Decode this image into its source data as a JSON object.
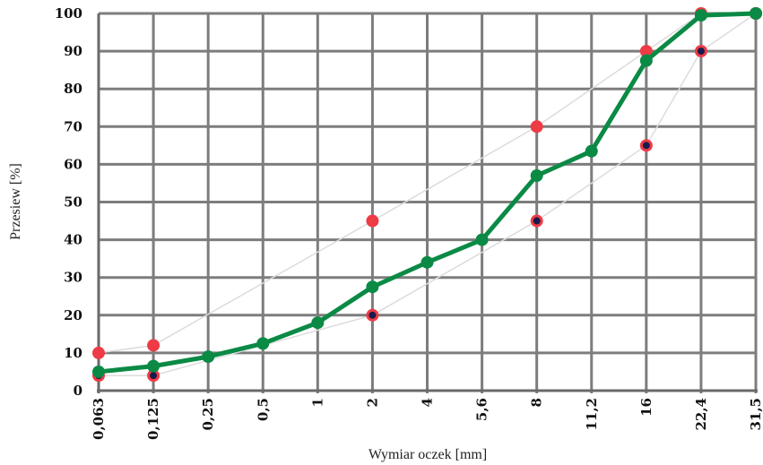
{
  "chart_data": {
    "type": "line",
    "xlabel": "Wymiar oczek [mm]",
    "ylabel": "Przesiew [%]",
    "categories": [
      "0,063",
      "0,125",
      "0,25",
      "0,5",
      "1",
      "2",
      "4",
      "5,6",
      "8",
      "11,2",
      "16",
      "22,4",
      "31,5"
    ],
    "yticks": [
      "0",
      "10",
      "20",
      "30",
      "40",
      "50",
      "60",
      "70",
      "80",
      "90",
      "100"
    ],
    "ylim": [
      0,
      100
    ],
    "grid": true,
    "legend": "none",
    "series": [
      {
        "role": "grading-curve",
        "color": "#0a8a45",
        "points": [
          {
            "x": "0,063",
            "y": 5
          },
          {
            "x": "0,125",
            "y": 6.5
          },
          {
            "x": "0,25",
            "y": 9
          },
          {
            "x": "0,5",
            "y": 12.5
          },
          {
            "x": "1",
            "y": 18
          },
          {
            "x": "2",
            "y": 27.5
          },
          {
            "x": "4",
            "y": 34
          },
          {
            "x": "5,6",
            "y": 40
          },
          {
            "x": "8",
            "y": 57
          },
          {
            "x": "11,2",
            "y": 63.5
          },
          {
            "x": "16",
            "y": 87.5
          },
          {
            "x": "22,4",
            "y": 99.5
          },
          {
            "x": "31,5",
            "y": 100
          }
        ]
      },
      {
        "role": "upper-limit",
        "color": "#ee3b46",
        "points": [
          {
            "x": "0,063",
            "y": 10
          },
          {
            "x": "0,125",
            "y": 12
          },
          {
            "x": "2",
            "y": 45
          },
          {
            "x": "8",
            "y": 70
          },
          {
            "x": "16",
            "y": 90
          },
          {
            "x": "22,4",
            "y": 100
          },
          {
            "x": "31,5",
            "y": 100
          }
        ]
      },
      {
        "role": "lower-limit",
        "color": "#ee3b46",
        "inner_color": "#1a1a4a",
        "points": [
          {
            "x": "0,063",
            "y": 4
          },
          {
            "x": "0,125",
            "y": 4
          },
          {
            "x": "2",
            "y": 20
          },
          {
            "x": "8",
            "y": 45
          },
          {
            "x": "16",
            "y": 65
          },
          {
            "x": "22,4",
            "y": 90
          },
          {
            "x": "31,5",
            "y": 100
          }
        ]
      }
    ]
  }
}
